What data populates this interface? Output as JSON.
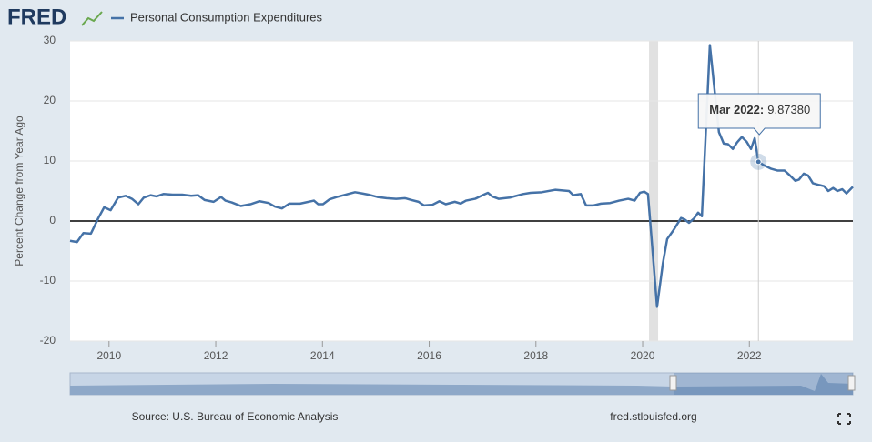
{
  "chart_data": {
    "type": "line",
    "logo": "FRED",
    "ylabel": "Percent Change from Year Ago",
    "source": "Source: U.S. Bureau of Economic Analysis",
    "site": "fred.stlouisfed.org",
    "xlim": [
      2009.27,
      2023.94
    ],
    "xticks": [
      2010,
      2012,
      2014,
      2016,
      2018,
      2020,
      2022
    ],
    "ylim": [
      -20,
      30
    ],
    "yticks": [
      -20,
      -10,
      0,
      10,
      20,
      30
    ],
    "grid": true,
    "shaded_periods": [
      [
        2020.12,
        2020.29
      ]
    ],
    "x": [
      2009.27,
      2009.4,
      2009.52,
      2009.66,
      2009.8,
      2009.91,
      2010.03,
      2010.17,
      2010.31,
      2010.43,
      2010.55,
      2010.65,
      2010.78,
      2010.89,
      2011.02,
      2011.19,
      2011.37,
      2011.54,
      2011.67,
      2011.79,
      2011.96,
      2012.1,
      2012.18,
      2012.3,
      2012.47,
      2012.65,
      2012.82,
      2012.99,
      2013.11,
      2013.24,
      2013.38,
      2013.58,
      2013.84,
      2013.92,
      2014.01,
      2014.13,
      2014.27,
      2014.44,
      2014.61,
      2014.74,
      2014.86,
      2015.03,
      2015.2,
      2015.38,
      2015.55,
      2015.67,
      2015.8,
      2015.9,
      2016.06,
      2016.19,
      2016.31,
      2016.48,
      2016.59,
      2016.69,
      2016.86,
      2017.0,
      2017.1,
      2017.18,
      2017.3,
      2017.51,
      2017.76,
      2017.9,
      2018.11,
      2018.36,
      2018.5,
      2018.62,
      2018.7,
      2018.84,
      2018.94,
      2019.08,
      2019.22,
      2019.39,
      2019.56,
      2019.73,
      2019.85,
      2019.95,
      2020.03,
      2020.1,
      2020.27,
      2020.38,
      2020.46,
      2020.58,
      2020.72,
      2020.78,
      2020.87,
      2020.96,
      2021.04,
      2021.11,
      2021.26,
      2021.43,
      2021.52,
      2021.6,
      2021.69,
      2021.77,
      2021.86,
      2021.95,
      2022.03,
      2022.1,
      2022.17,
      2022.27,
      2022.41,
      2022.53,
      2022.66,
      2022.76,
      2022.86,
      2022.93,
      2023.02,
      2023.1,
      2023.19,
      2023.31,
      2023.4,
      2023.48,
      2023.57,
      2023.65,
      2023.74,
      2023.82,
      2023.94
    ],
    "series": [
      {
        "name": "Personal Consumption Expenditures",
        "color": "#4572a7",
        "values": [
          -3.3,
          -3.5,
          -2.0,
          -2.1,
          0.5,
          2.3,
          1.8,
          3.9,
          4.2,
          3.7,
          2.8,
          3.9,
          4.3,
          4.1,
          4.5,
          4.4,
          4.4,
          4.2,
          4.3,
          3.5,
          3.2,
          4.0,
          3.4,
          3.1,
          2.5,
          2.8,
          3.3,
          3.0,
          2.4,
          2.1,
          2.9,
          2.9,
          3.4,
          2.8,
          2.8,
          3.6,
          4.0,
          4.4,
          4.8,
          4.6,
          4.4,
          4.0,
          3.8,
          3.7,
          3.8,
          3.5,
          3.2,
          2.6,
          2.7,
          3.3,
          2.8,
          3.2,
          2.9,
          3.4,
          3.7,
          4.3,
          4.7,
          4.1,
          3.7,
          3.9,
          4.5,
          4.7,
          4.8,
          5.2,
          5.1,
          5.0,
          4.3,
          4.5,
          2.6,
          2.6,
          2.9,
          3.0,
          3.4,
          3.7,
          3.4,
          4.7,
          4.9,
          4.5,
          -14.3,
          -7.0,
          -3.0,
          -1.5,
          0.5,
          0.3,
          -0.3,
          0.4,
          1.4,
          0.8,
          29.3,
          14.8,
          12.9,
          12.8,
          12.0,
          13.1,
          14.0,
          13.2,
          12.0,
          13.8,
          9.8738,
          9.3,
          8.7,
          8.4,
          8.4,
          7.6,
          6.7,
          6.9,
          7.9,
          7.6,
          6.3,
          6.0,
          5.8,
          5.0,
          5.5,
          5.0,
          5.3,
          4.6,
          5.7
        ]
      }
    ],
    "tooltip": {
      "label": "Mar 2022",
      "value": 9.8738,
      "value_label": "9.87380"
    }
  }
}
